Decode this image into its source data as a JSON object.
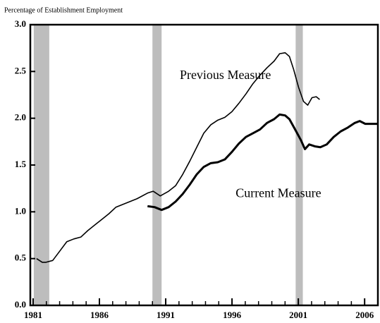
{
  "chart_data": {
    "type": "line",
    "title": "Percentage of Establishment Employment",
    "annotations": [
      {
        "text": "Previous Measure",
        "x": 1995.5,
        "y": 2.45
      },
      {
        "text": "Current Measure",
        "x": 1999.5,
        "y": 1.19
      }
    ],
    "recessions": [
      [
        1981.05,
        1982.22
      ],
      [
        1990.0,
        1990.69
      ],
      [
        2000.8,
        2001.34
      ]
    ],
    "recession_color": "#bdbdbd",
    "xlim": [
      1980.79,
      2007.0
    ],
    "ylim": [
      0,
      3.0
    ],
    "xticks": [
      1981,
      1986,
      1991,
      1996,
      2001,
      2006
    ],
    "xminorticks": [
      1982,
      1983,
      1984,
      1985,
      1987,
      1988,
      1989,
      1990,
      1992,
      1993,
      1994,
      1995,
      1997,
      1998,
      1999,
      2000,
      2002,
      2003,
      2004,
      2005
    ],
    "yticks": [
      {
        "value": 0,
        "label": "0.0"
      },
      0.5,
      {
        "value": 1,
        "label": "1.0"
      },
      1.5,
      {
        "value": 2,
        "label": "2.0"
      },
      2.5,
      {
        "value": 3,
        "label": "3.0"
      }
    ],
    "series": [
      {
        "name": "Previous Measure",
        "color": "#000000",
        "x": [
          1981.26,
          1981.69,
          1981.95,
          1982.48,
          1983.01,
          1983.54,
          1984.07,
          1984.6,
          1985.13,
          1985.66,
          1986.19,
          1986.72,
          1987.25,
          1987.78,
          1988.31,
          1988.84,
          1989.63,
          1990.06,
          1990.59,
          1991.22,
          1991.75,
          1992.28,
          1992.81,
          1993.34,
          1993.87,
          1994.4,
          1994.93,
          1995.46,
          1995.99,
          1996.52,
          1997.05,
          1997.58,
          1998.11,
          1998.64,
          1999.17,
          1999.59,
          2000.01,
          2000.33,
          2000.65,
          2001.02,
          2001.39,
          2001.71,
          2002.03,
          2002.35,
          2002.61
        ],
        "values": [
          0.5,
          0.46,
          0.46,
          0.48,
          0.58,
          0.68,
          0.71,
          0.73,
          0.8,
          0.86,
          0.92,
          0.98,
          1.05,
          1.08,
          1.11,
          1.14,
          1.2,
          1.22,
          1.17,
          1.22,
          1.28,
          1.4,
          1.54,
          1.69,
          1.84,
          1.93,
          1.98,
          2.01,
          2.07,
          2.16,
          2.26,
          2.37,
          2.46,
          2.54,
          2.61,
          2.69,
          2.7,
          2.66,
          2.52,
          2.33,
          2.18,
          2.14,
          2.22,
          2.23,
          2.2
        ]
      },
      {
        "name": "Current Measure",
        "color": "#000000",
        "x": [
          1989.63,
          1990.16,
          1990.69,
          1991.22,
          1991.75,
          1992.28,
          1992.81,
          1993.34,
          1993.87,
          1994.4,
          1994.93,
          1995.46,
          1995.99,
          1996.52,
          1997.05,
          1997.58,
          1998.11,
          1998.64,
          1999.17,
          1999.59,
          2000.01,
          2000.33,
          2000.76,
          2001.18,
          2001.5,
          2001.82,
          2002.24,
          2002.66,
          2003.14,
          2003.67,
          2004.2,
          2004.73,
          2005.26,
          2005.63,
          2006.05,
          2006.58,
          2006.95
        ],
        "values": [
          1.06,
          1.05,
          1.02,
          1.05,
          1.11,
          1.19,
          1.29,
          1.4,
          1.48,
          1.52,
          1.53,
          1.56,
          1.64,
          1.73,
          1.8,
          1.84,
          1.88,
          1.95,
          1.99,
          2.04,
          2.03,
          1.99,
          1.88,
          1.77,
          1.67,
          1.72,
          1.7,
          1.69,
          1.72,
          1.8,
          1.86,
          1.9,
          1.95,
          1.97,
          1.94,
          1.94,
          1.94
        ]
      }
    ]
  }
}
